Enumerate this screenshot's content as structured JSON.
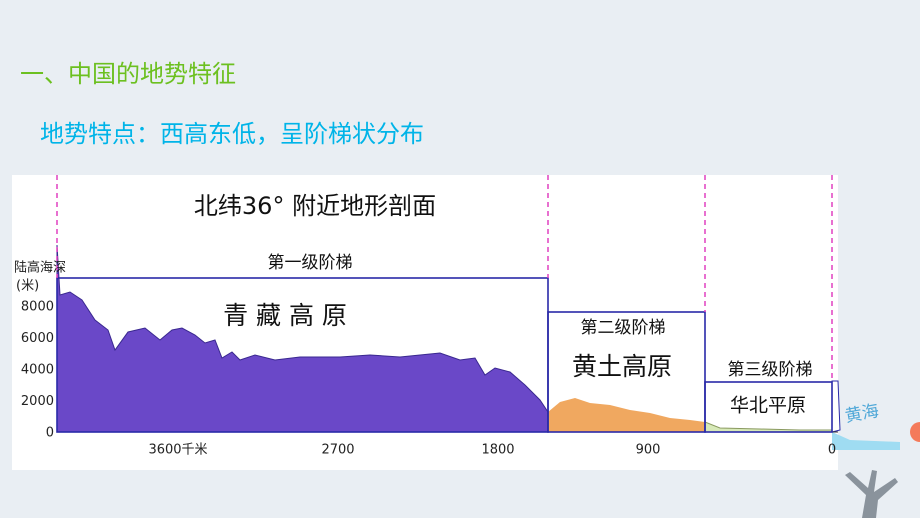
{
  "header": {
    "title": "一、中国的地势特征",
    "subtitle": "地势特点：西高东低，呈阶梯状分布"
  },
  "profile": {
    "title": "北纬36° 附近地形剖面",
    "y_axis_label": "陆高海深",
    "y_axis_unit": "(米)",
    "y_ticks": [
      "8000",
      "6000",
      "4000",
      "2000",
      "0"
    ],
    "x_ticks": [
      "3600千米",
      "2700",
      "1800",
      "900",
      "0"
    ],
    "steps": [
      {
        "name": "第一级阶梯",
        "region": "青 藏 高 原"
      },
      {
        "name": "第二级阶梯",
        "region": "黄土高原"
      },
      {
        "name": "第三级阶梯",
        "region": "华北平原"
      }
    ],
    "sea": "黄海"
  }
}
